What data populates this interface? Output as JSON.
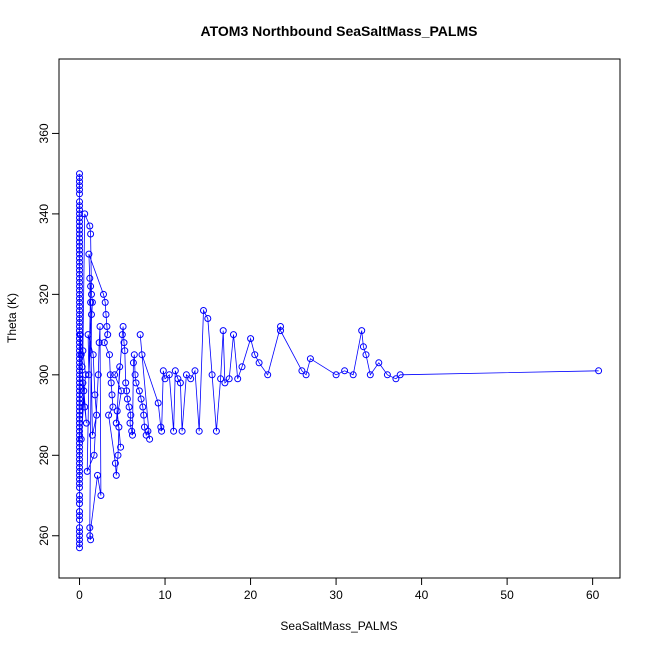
{
  "chart_data": {
    "type": "scatter",
    "title": "ATOM3 Northbound SeaSaltMass_PALMS",
    "xlabel": "SeaSaltMass_PALMS",
    "ylabel": "Theta (K)",
    "xlim": [
      -2.4,
      63.2
    ],
    "ylim": [
      249.5,
      378.5
    ],
    "x_ticks": [
      0,
      10,
      20,
      30,
      40,
      50,
      60
    ],
    "y_ticks": [
      260,
      280,
      300,
      320,
      340,
      360
    ],
    "grid": false,
    "legend": "none",
    "series_color": "#0000ff",
    "series": [
      {
        "x": [
          0,
          0,
          0,
          0,
          0,
          0,
          0,
          0,
          0,
          0,
          0,
          0,
          0,
          0,
          0,
          0,
          0,
          0,
          0,
          0,
          0,
          0,
          0,
          0,
          0,
          0,
          0,
          0,
          0,
          0,
          0,
          0,
          0,
          0,
          0,
          0,
          0,
          0,
          0,
          0,
          0,
          0,
          0,
          0,
          0,
          0,
          0,
          0,
          0,
          0,
          0,
          0,
          0,
          0,
          0,
          0,
          0,
          0,
          0,
          0,
          0,
          0,
          0,
          0,
          0,
          0,
          0,
          0,
          0,
          0,
          0,
          0,
          0,
          0,
          0,
          0,
          0,
          0,
          0,
          0,
          0,
          0,
          0,
          0,
          0,
          0,
          0,
          0,
          0,
          0,
          0.1,
          0.2,
          0.4,
          0.6,
          0.8,
          0.3,
          0.5,
          0.2,
          0.7,
          0.4,
          0.6,
          1.2,
          1.3,
          1.4,
          1.5,
          1.1,
          1.0,
          1.6,
          1.8,
          2.0,
          1.5,
          1.2,
          1.3,
          0.9,
          1.7,
          2.2,
          2.3,
          2.4,
          2.5,
          2.1,
          1.2,
          1.3,
          1.2,
          1.4,
          1.3,
          1.1,
          2.8,
          3.0,
          3.1,
          3.2,
          3.3,
          2.9,
          3.5,
          3.6,
          3.7,
          3.8,
          3.9,
          3.4,
          4.2,
          4.3,
          4.5,
          4.6,
          4.8,
          4.4,
          4.7,
          4.1,
          4.9,
          4.3,
          5.0,
          5.1,
          5.2,
          5.3,
          5.4,
          5.5,
          5.6,
          5.8,
          6.0,
          5.9,
          6.1,
          6.2,
          6.3,
          6.4,
          6.5,
          6.6,
          7.0,
          7.2,
          7.4,
          7.5,
          7.6,
          7.8,
          8.0,
          8.2,
          7.1,
          7.3,
          9.2,
          9.5,
          9.6,
          9.8,
          10.0,
          10.5,
          11.0,
          11.2,
          11.5,
          11.8,
          12.0,
          12.5,
          13.0,
          13.5,
          14.0,
          14.5,
          15.0,
          15.5,
          16.0,
          16.5,
          16.8,
          17.0,
          17.5,
          18.0,
          18.5,
          19.0,
          20.0,
          20.5,
          21.0,
          22.0,
          23.5,
          23.5,
          26.0,
          26.5,
          27.0,
          30.0,
          31.0,
          32.0,
          33.0,
          33.2,
          33.5,
          34.0,
          35.0,
          36.0,
          37.0,
          37.5,
          60.7
        ],
        "y": [
          350,
          349,
          347,
          345,
          343,
          340,
          338,
          336,
          334,
          332,
          330,
          328,
          326,
          324,
          322,
          320,
          318,
          316,
          314,
          312,
          310,
          308,
          306,
          304,
          302,
          300,
          298,
          296,
          294,
          292,
          290,
          288,
          286,
          284,
          282,
          280,
          278,
          276,
          274,
          272,
          270,
          268,
          266,
          264,
          262,
          260,
          258,
          257,
          348,
          341,
          337,
          333,
          329,
          325,
          321,
          317,
          313,
          309,
          305,
          301,
          297,
          293,
          289,
          285,
          281,
          277,
          273,
          269,
          265,
          261,
          259,
          346,
          342,
          339,
          335,
          331,
          327,
          323,
          319,
          315,
          311,
          307,
          303,
          299,
          295,
          291,
          287,
          283,
          279,
          275,
          310,
          305,
          298,
          292,
          288,
          302,
          296,
          284,
          300,
          306,
          340,
          337,
          335,
          320,
          318,
          300,
          310,
          305,
          295,
          290,
          285,
          324,
          322,
          276,
          280,
          300,
          308,
          312,
          270,
          275,
          260,
          259,
          262,
          315,
          318,
          330,
          320,
          318,
          315,
          312,
          310,
          308,
          305,
          300,
          298,
          295,
          292,
          290,
          278,
          275,
          280,
          287,
          282,
          291,
          302,
          300,
          296,
          288,
          310,
          312,
          308,
          306,
          298,
          296,
          294,
          292,
          290,
          288,
          286,
          285,
          303,
          305,
          300,
          298,
          296,
          294,
          292,
          290,
          287,
          285,
          286,
          284,
          310,
          305,
          293,
          287,
          286,
          301,
          299,
          300,
          286,
          301,
          299,
          298,
          286,
          300,
          299,
          301,
          286,
          316,
          314,
          300,
          286,
          299,
          311,
          298,
          299,
          310,
          299,
          302,
          309,
          305,
          303,
          300,
          312,
          311,
          301,
          300,
          304,
          300,
          301,
          300,
          311,
          307,
          305,
          300,
          303,
          300,
          299,
          300,
          301
        ]
      }
    ]
  }
}
